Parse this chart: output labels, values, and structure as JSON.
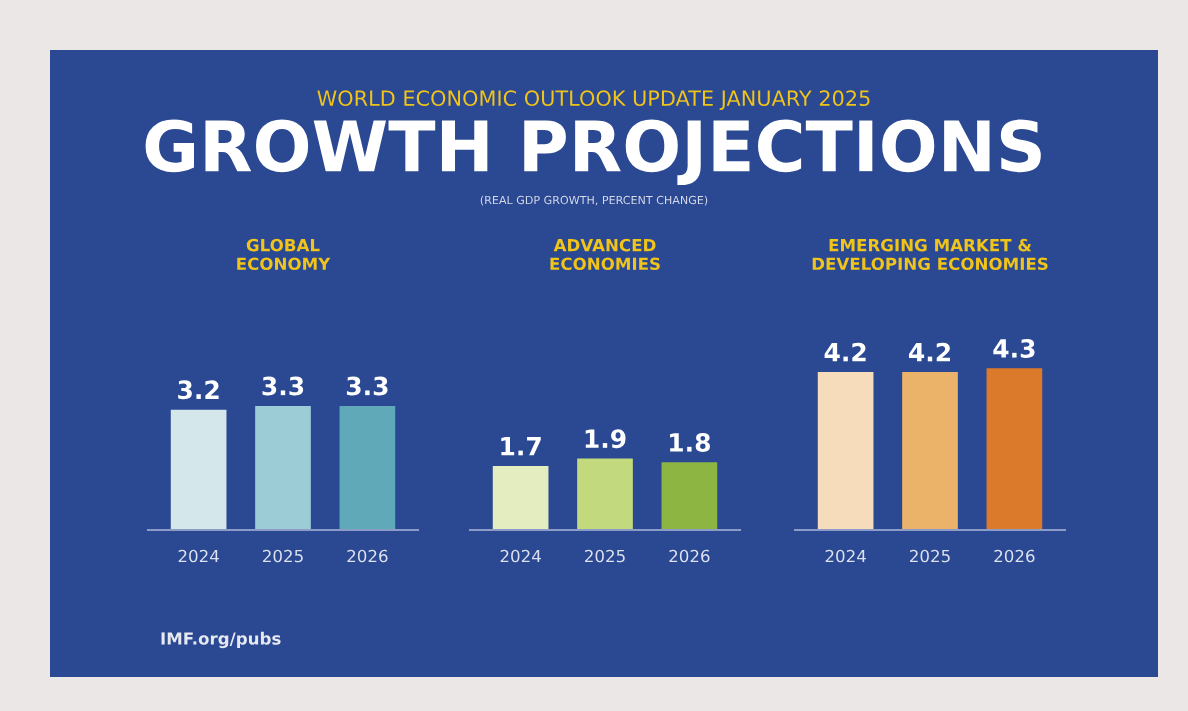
{
  "chart_data": [
    {
      "type": "other",
      "title": "GROWTH PROJECTIONS",
      "subtitle": "(REAL GDP GROWTH, PERCENT CHANGE)",
      "annotations": [
        "WORLD ECONOMIC OUTLOOK UPDATE JANUARY 2025",
        "IMF.org/pubs"
      ]
    },
    {
      "type": "bar",
      "title": "GLOBAL\nECONOMY",
      "categories": [
        "2024",
        "2025",
        "2026"
      ],
      "values": [
        3.2,
        3.3,
        3.3
      ],
      "colors": [
        "#d4e8ec",
        "#9ccdd6",
        "#5fa9b8"
      ],
      "data_labels": true,
      "tick_labels": "x",
      "grid": false,
      "legend": false
    },
    {
      "type": "bar",
      "title": "ADVANCED\nECONOMIES",
      "categories": [
        "2024",
        "2025",
        "2026"
      ],
      "values": [
        1.7,
        1.9,
        1.8
      ],
      "colors": [
        "#e4edc0",
        "#c2d97e",
        "#8db542"
      ],
      "data_labels": true,
      "tick_labels": "x",
      "grid": false,
      "legend": false
    },
    {
      "type": "bar",
      "title": "EMERGING MARKET &\nDEVELOPING ECONOMIES",
      "categories": [
        "2024",
        "2025",
        "2026"
      ],
      "values": [
        4.2,
        4.2,
        4.3
      ],
      "colors": [
        "#f6dcbb",
        "#ebb36a",
        "#dc7a2c"
      ],
      "data_labels": true,
      "tick_labels": "x",
      "grid": false,
      "legend": false
    }
  ]
}
